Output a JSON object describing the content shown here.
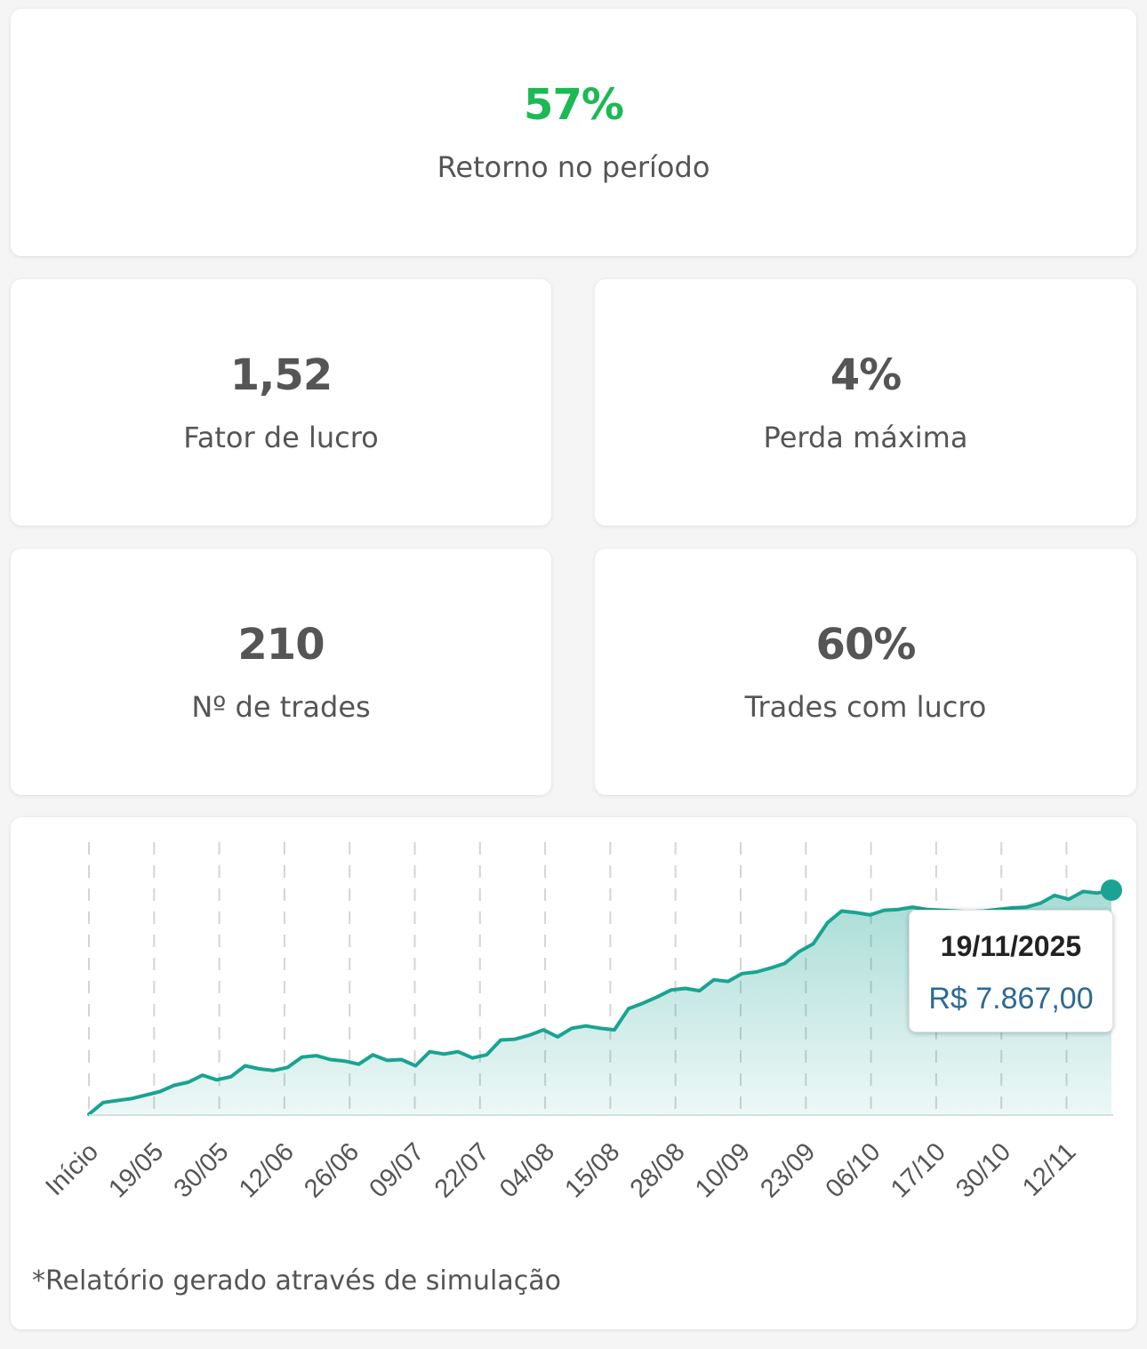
{
  "stats": {
    "return": {
      "value": "57%",
      "label": "Retorno no período"
    },
    "profit_factor": {
      "value": "1,52",
      "label": "Fator de lucro"
    },
    "max_drawdown": {
      "value": "4%",
      "label": "Perda máxima"
    },
    "trades": {
      "value": "210",
      "label": "Nº de trades"
    },
    "win_rate": {
      "value": "60%",
      "label": "Trades com lucro"
    }
  },
  "colors": {
    "accent": "#1aa393",
    "positive": "#1db954",
    "tooltip_value": "#2b6a96"
  },
  "tooltip": {
    "date": "19/11/2025",
    "value": "R$ 7.867,00"
  },
  "footnote": "*Relatório gerado através de simulação",
  "chart_data": {
    "type": "area",
    "title": "",
    "xlabel": "",
    "ylabel": "",
    "grid": "vertical dashed",
    "x_ticks": [
      "Início",
      "19/05",
      "30/05",
      "12/06",
      "26/06",
      "09/07",
      "22/07",
      "04/08",
      "15/08",
      "28/08",
      "10/09",
      "23/09",
      "06/10",
      "17/10",
      "30/10",
      "12/11"
    ],
    "series": [
      {
        "values": [
          5000,
          5150,
          5200,
          5290,
          5370,
          5410,
          5500,
          5440,
          5480,
          5620,
          5580,
          5560,
          5600,
          5730,
          5750,
          5700,
          5680,
          5640,
          5760,
          5690,
          5700,
          5620,
          5800,
          5770,
          5800,
          5720,
          5760,
          5950,
          5960,
          6010,
          6080,
          5990,
          6100,
          6130,
          6100,
          6080,
          6350,
          6420,
          6500,
          6590,
          6610,
          6580,
          6720,
          6700,
          6800,
          6820,
          6870,
          6930,
          7080,
          7180,
          7450,
          7600,
          7580,
          7550,
          7610,
          7620,
          7650,
          7620,
          7610,
          7600,
          7590,
          7600,
          7620,
          7640,
          7650,
          7700,
          7800,
          7750,
          7850,
          7830,
          7867
        ],
        "x_index": [
          0,
          1,
          3,
          5,
          6,
          7,
          8,
          9,
          10,
          11,
          12,
          13,
          14,
          15,
          16,
          17,
          18,
          19,
          20,
          21,
          22,
          23,
          24,
          25,
          26,
          27,
          28,
          29,
          30,
          31,
          32,
          33,
          34,
          35,
          36,
          37,
          38,
          39,
          40,
          41,
          42,
          43,
          44,
          45,
          46,
          47,
          48,
          49,
          50,
          51,
          52,
          53,
          54,
          55,
          56,
          57,
          58,
          59,
          60,
          61,
          62,
          63,
          64,
          65,
          66,
          67,
          68,
          69,
          70,
          71,
          72
        ]
      }
    ],
    "last_point": {
      "date": "19/11/2025",
      "value": 7867
    }
  }
}
